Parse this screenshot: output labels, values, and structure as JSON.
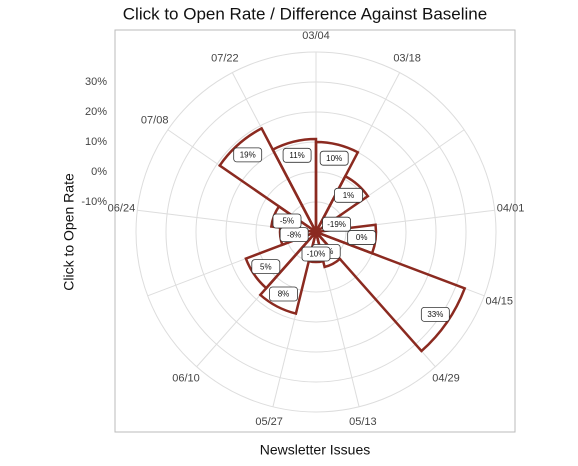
{
  "chart_data": {
    "type": "polar-bar",
    "title": "Click to Open Rate / Difference Against Baseline",
    "x_label": "Newsletter Issues",
    "y_label": "Click to Open Rate",
    "categories": [
      "03/04",
      "03/18",
      null,
      "04/01",
      "04/15",
      "04/29",
      "05/13",
      "05/27",
      "06/10",
      null,
      "06/24",
      "07/08",
      "07/22"
    ],
    "values": [
      10,
      1,
      -19,
      0,
      33,
      -8,
      -10,
      8,
      5,
      -8,
      -5,
      19,
      11
    ],
    "value_labels": [
      "10%",
      "1%",
      "-19%",
      "0%",
      "33%",
      "-8%",
      "-10%",
      "8%",
      "5%",
      "-8%",
      "-5%",
      "19%",
      "11%"
    ],
    "color": "#8b2a20",
    "ylim": [
      -20,
      40
    ],
    "yticks": [
      {
        "value": -10,
        "label": "-10%"
      },
      {
        "value": 0,
        "label": "0%"
      },
      {
        "value": 10,
        "label": "10%"
      },
      {
        "value": 20,
        "label": "20%"
      },
      {
        "value": 30,
        "label": "30%"
      }
    ],
    "grid": true
  }
}
